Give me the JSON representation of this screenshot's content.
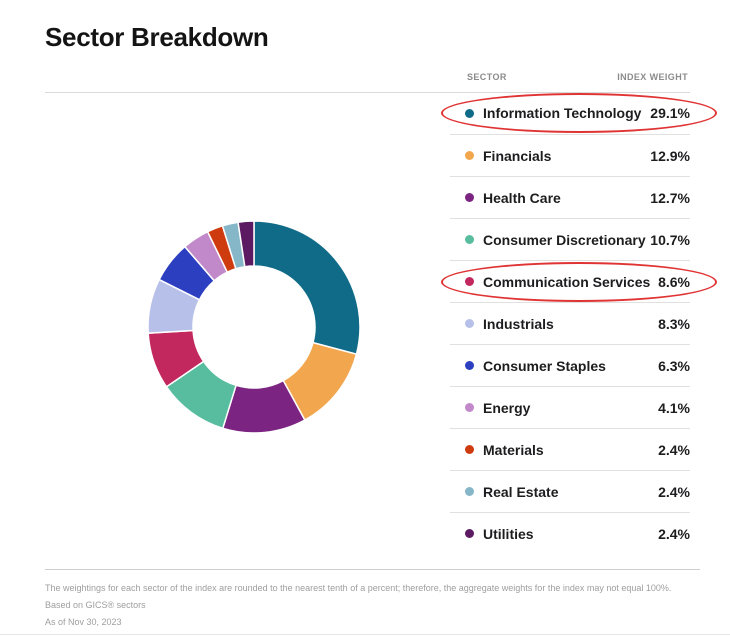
{
  "title": "Sector Breakdown",
  "annotation_color": "#e03434",
  "table": {
    "headers": {
      "sector": "SECTOR",
      "weight": "INDEX WEIGHT"
    },
    "rows": [
      {
        "label": "Information Technology",
        "weight": "29.1%",
        "color": "#0f6b87",
        "annotated": true
      },
      {
        "label": "Financials",
        "weight": "12.9%",
        "color": "#f2a74f",
        "annotated": false
      },
      {
        "label": "Health Care",
        "weight": "12.7%",
        "color": "#7c2482",
        "annotated": false
      },
      {
        "label": "Consumer Discretionary",
        "weight": "10.7%",
        "color": "#57bd9e",
        "annotated": false
      },
      {
        "label": "Communication Services",
        "weight": "8.6%",
        "color": "#c2275e",
        "annotated": true
      },
      {
        "label": "Industrials",
        "weight": "8.3%",
        "color": "#b7c0e8",
        "annotated": false
      },
      {
        "label": "Consumer Staples",
        "weight": "6.3%",
        "color": "#2b3fc0",
        "annotated": false
      },
      {
        "label": "Energy",
        "weight": "4.1%",
        "color": "#c289ca",
        "annotated": false
      },
      {
        "label": "Materials",
        "weight": "2.4%",
        "color": "#ce3b0f",
        "annotated": false
      },
      {
        "label": "Real Estate",
        "weight": "2.4%",
        "color": "#86b7c9",
        "annotated": false
      },
      {
        "label": "Utilities",
        "weight": "2.4%",
        "color": "#5b1a61",
        "annotated": false
      }
    ]
  },
  "chart_data": {
    "type": "pie",
    "subtype": "donut",
    "title": "Sector Breakdown",
    "categories": [
      "Information Technology",
      "Financials",
      "Health Care",
      "Consumer Discretionary",
      "Communication Services",
      "Industrials",
      "Consumer Staples",
      "Energy",
      "Materials",
      "Real Estate",
      "Utilities"
    ],
    "values": [
      29.1,
      12.9,
      12.7,
      10.7,
      8.6,
      8.3,
      6.3,
      4.1,
      2.4,
      2.4,
      2.4
    ],
    "colors": [
      "#0f6b87",
      "#f2a74f",
      "#7c2482",
      "#57bd9e",
      "#c2275e",
      "#b7c0e8",
      "#2b3fc0",
      "#c289ca",
      "#ce3b0f",
      "#86b7c9",
      "#5b1a61"
    ],
    "start_angle_deg": 0,
    "direction": "clockwise",
    "inner_radius_ratio": 0.58,
    "legend_position": "right",
    "annotated_categories": [
      "Information Technology",
      "Communication Services"
    ]
  },
  "footer": {
    "line1": "The weightings for each sector of the index are rounded to the nearest tenth of a percent; therefore, the aggregate weights for the index may not equal 100%.",
    "line2": "Based on GICS® sectors",
    "line3": "As of Nov 30, 2023"
  }
}
